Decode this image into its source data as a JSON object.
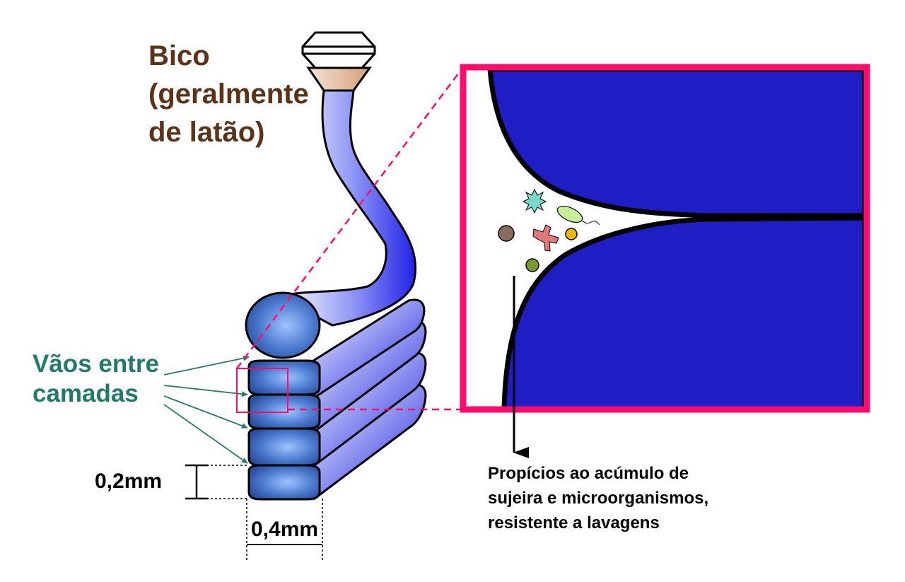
{
  "labels": {
    "nozzle": [
      "Bico",
      "(geralmente",
      "de latão)"
    ],
    "gaps": [
      "Vãos entre",
      "camadas"
    ],
    "layer_height": "0,2mm",
    "layer_width": "0,4mm",
    "note": [
      "Propícios ao acúmulo de",
      "sujeira e microorganismos,",
      "resistente a lavagens"
    ]
  },
  "colors": {
    "nozzle_text": "#5c3317",
    "gap_text": "#227a6a",
    "zoom_frame": "#ff0a6e",
    "filament_fill": "#1f1ec4",
    "bead_fill": "#4a78cc",
    "arrow_color": "#2a7a68"
  }
}
